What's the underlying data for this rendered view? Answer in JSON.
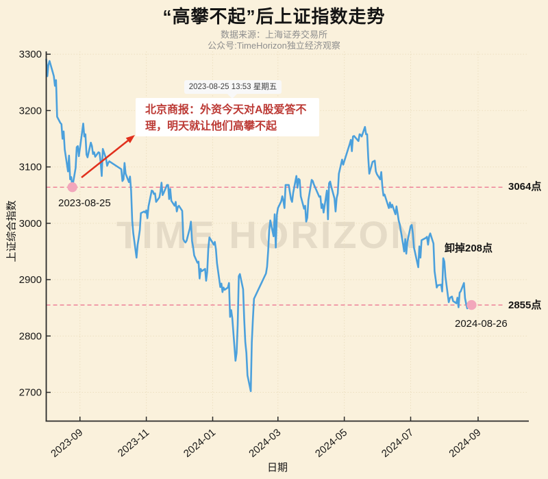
{
  "header": {
    "title": "“高攀不起”后上证指数走势",
    "source_line": "数据来源：上海证券交易所",
    "account_line": "公众号:TimeHorizon独立经济观察"
  },
  "watermark": "TIME HORIZON",
  "news_card": {
    "timestamp": "2023-08-25 13:53 星期五",
    "text": "北京商报：外资今天对A股爱答不理，明天就让他们高攀不起"
  },
  "colors": {
    "background": "#faf1dc",
    "line": "#4ba0dc",
    "ref_dashed": "#ee8197",
    "marker_dot": "#f2a6bb",
    "arrow": "#e1301d",
    "news_text": "#bc3a35"
  },
  "chart_data": {
    "type": "line",
    "title": "“高攀不起”后上证指数走势",
    "xlabel": "日期",
    "ylabel": "上证综合指数",
    "grid": true,
    "xlim": [
      "2023-08-01",
      "2024-10-17"
    ],
    "ylim": [
      2649,
      3305
    ],
    "y_ticks": [
      2700,
      2800,
      2900,
      3000,
      3100,
      3200,
      3300
    ],
    "x_ticks": [
      {
        "date": "2023-09-01",
        "label": "2023-09"
      },
      {
        "date": "2023-11-01",
        "label": "2023-11"
      },
      {
        "date": "2024-01-01",
        "label": "2024-01"
      },
      {
        "date": "2024-03-01",
        "label": "2024-03"
      },
      {
        "date": "2024-05-01",
        "label": "2024-05"
      },
      {
        "date": "2024-07-01",
        "label": "2024-07"
      },
      {
        "date": "2024-09-01",
        "label": "2024-09"
      }
    ],
    "ref_lines": [
      {
        "value": 3064,
        "label": "3064点"
      },
      {
        "value": 2855,
        "label": "2855点"
      }
    ],
    "marked_points": [
      {
        "date": "2023-08-25",
        "value": 3064,
        "label": "2023-08-25"
      },
      {
        "date": "2024-08-26",
        "value": 2855,
        "label": "2024-08-26"
      }
    ],
    "drop_label": "卸掉208点",
    "series": [
      {
        "name": "上证综合指数",
        "color": "#4ba0dc",
        "points": [
          [
            "2023-08-01",
            3291
          ],
          [
            "2023-08-02",
            3261
          ],
          [
            "2023-08-03",
            3281
          ],
          [
            "2023-08-04",
            3288
          ],
          [
            "2023-08-07",
            3268
          ],
          [
            "2023-08-08",
            3261
          ],
          [
            "2023-08-09",
            3244
          ],
          [
            "2023-08-10",
            3254
          ],
          [
            "2023-08-11",
            3189
          ],
          [
            "2023-08-14",
            3178
          ],
          [
            "2023-08-15",
            3176
          ],
          [
            "2023-08-16",
            3150
          ],
          [
            "2023-08-17",
            3163
          ],
          [
            "2023-08-18",
            3131
          ],
          [
            "2023-08-21",
            3092
          ],
          [
            "2023-08-22",
            3120
          ],
          [
            "2023-08-23",
            3078
          ],
          [
            "2023-08-24",
            3082
          ],
          [
            "2023-08-25",
            3064
          ],
          [
            "2023-08-28",
            3098
          ],
          [
            "2023-08-29",
            3135
          ],
          [
            "2023-08-30",
            3137
          ],
          [
            "2023-08-31",
            3119
          ],
          [
            "2023-09-01",
            3133
          ],
          [
            "2023-09-04",
            3177
          ],
          [
            "2023-09-05",
            3154
          ],
          [
            "2023-09-06",
            3158
          ],
          [
            "2023-09-07",
            3122
          ],
          [
            "2023-09-08",
            3117
          ],
          [
            "2023-09-11",
            3143
          ],
          [
            "2023-09-12",
            3137
          ],
          [
            "2023-09-13",
            3123
          ],
          [
            "2023-09-14",
            3126
          ],
          [
            "2023-09-15",
            3118
          ],
          [
            "2023-09-18",
            3126
          ],
          [
            "2023-09-19",
            3125
          ],
          [
            "2023-09-20",
            3109
          ],
          [
            "2023-09-21",
            3084
          ],
          [
            "2023-09-22",
            3132
          ],
          [
            "2023-09-25",
            3115
          ],
          [
            "2023-09-26",
            3102
          ],
          [
            "2023-09-27",
            3107
          ],
          [
            "2023-09-28",
            3110
          ],
          [
            "2023-10-09",
            3096
          ],
          [
            "2023-10-10",
            3075
          ],
          [
            "2023-10-11",
            3078
          ],
          [
            "2023-10-12",
            3107
          ],
          [
            "2023-10-13",
            3088
          ],
          [
            "2023-10-16",
            3073
          ],
          [
            "2023-10-17",
            3083
          ],
          [
            "2023-10-18",
            3058
          ],
          [
            "2023-10-19",
            3005
          ],
          [
            "2023-10-20",
            2983
          ],
          [
            "2023-10-23",
            2939
          ],
          [
            "2023-10-24",
            2962
          ],
          [
            "2023-10-25",
            2974
          ],
          [
            "2023-10-26",
            2988
          ],
          [
            "2023-10-27",
            3018
          ],
          [
            "2023-10-30",
            3021
          ],
          [
            "2023-10-31",
            3019
          ],
          [
            "2023-11-01",
            3023
          ],
          [
            "2023-11-02",
            3009
          ],
          [
            "2023-11-03",
            3030
          ],
          [
            "2023-11-06",
            3058
          ],
          [
            "2023-11-07",
            3057
          ],
          [
            "2023-11-08",
            3052
          ],
          [
            "2023-11-09",
            3053
          ],
          [
            "2023-11-10",
            3038
          ],
          [
            "2023-11-13",
            3046
          ],
          [
            "2023-11-14",
            3056
          ],
          [
            "2023-11-15",
            3072
          ],
          [
            "2023-11-16",
            3050
          ],
          [
            "2023-11-17",
            3054
          ],
          [
            "2023-11-20",
            3068
          ],
          [
            "2023-11-21",
            3068
          ],
          [
            "2023-11-22",
            3043
          ],
          [
            "2023-11-23",
            3061
          ],
          [
            "2023-11-24",
            3040
          ],
          [
            "2023-11-27",
            3031
          ],
          [
            "2023-11-28",
            3038
          ],
          [
            "2023-11-29",
            3021
          ],
          [
            "2023-11-30",
            3029
          ],
          [
            "2023-12-01",
            3031
          ],
          [
            "2023-12-04",
            3022
          ],
          [
            "2023-12-05",
            2972
          ],
          [
            "2023-12-06",
            2968
          ],
          [
            "2023-12-07",
            2966
          ],
          [
            "2023-12-08",
            2969
          ],
          [
            "2023-12-11",
            2991
          ],
          [
            "2023-12-12",
            3003
          ],
          [
            "2023-12-13",
            2969
          ],
          [
            "2023-12-14",
            2958
          ],
          [
            "2023-12-15",
            2943
          ],
          [
            "2023-12-18",
            2930
          ],
          [
            "2023-12-19",
            2932
          ],
          [
            "2023-12-20",
            2902
          ],
          [
            "2023-12-21",
            2919
          ],
          [
            "2023-12-22",
            2915
          ],
          [
            "2023-12-25",
            2919
          ],
          [
            "2023-12-26",
            2898
          ],
          [
            "2023-12-27",
            2914
          ],
          [
            "2023-12-28",
            2955
          ],
          [
            "2023-12-29",
            2975
          ],
          [
            "2024-01-02",
            2962
          ],
          [
            "2024-01-03",
            2967
          ],
          [
            "2024-01-04",
            2954
          ],
          [
            "2024-01-05",
            2929
          ],
          [
            "2024-01-08",
            2887
          ],
          [
            "2024-01-09",
            2893
          ],
          [
            "2024-01-10",
            2878
          ],
          [
            "2024-01-11",
            2886
          ],
          [
            "2024-01-12",
            2882
          ],
          [
            "2024-01-15",
            2886
          ],
          [
            "2024-01-16",
            2894
          ],
          [
            "2024-01-17",
            2834
          ],
          [
            "2024-01-18",
            2846
          ],
          [
            "2024-01-19",
            2832
          ],
          [
            "2024-01-22",
            2756
          ],
          [
            "2024-01-23",
            2770
          ],
          [
            "2024-01-24",
            2820
          ],
          [
            "2024-01-25",
            2906
          ],
          [
            "2024-01-26",
            2910
          ],
          [
            "2024-01-29",
            2883
          ],
          [
            "2024-01-30",
            2830
          ],
          [
            "2024-01-31",
            2789
          ],
          [
            "2024-02-01",
            2770
          ],
          [
            "2024-02-02",
            2730
          ],
          [
            "2024-02-05",
            2702
          ],
          [
            "2024-02-06",
            2789
          ],
          [
            "2024-02-07",
            2830
          ],
          [
            "2024-02-08",
            2866
          ],
          [
            "2024-02-19",
            2911
          ],
          [
            "2024-02-20",
            2923
          ],
          [
            "2024-02-21",
            2951
          ],
          [
            "2024-02-22",
            2988
          ],
          [
            "2024-02-23",
            3005
          ],
          [
            "2024-02-26",
            2977
          ],
          [
            "2024-02-27",
            3016
          ],
          [
            "2024-02-28",
            2957
          ],
          [
            "2024-02-29",
            3015
          ],
          [
            "2024-03-01",
            3027
          ],
          [
            "2024-03-04",
            3039
          ],
          [
            "2024-03-05",
            3048
          ],
          [
            "2024-03-06",
            3040
          ],
          [
            "2024-03-07",
            3027
          ],
          [
            "2024-03-08",
            3068
          ],
          [
            "2024-03-11",
            3068
          ],
          [
            "2024-03-12",
            3055
          ],
          [
            "2024-03-13",
            3043
          ],
          [
            "2024-03-14",
            3038
          ],
          [
            "2024-03-15",
            3054
          ],
          [
            "2024-03-18",
            3084
          ],
          [
            "2024-03-19",
            3063
          ],
          [
            "2024-03-20",
            3079
          ],
          [
            "2024-03-21",
            3077
          ],
          [
            "2024-03-22",
            3048
          ],
          [
            "2024-03-25",
            3026
          ],
          [
            "2024-03-26",
            3031
          ],
          [
            "2024-03-27",
            3003
          ],
          [
            "2024-03-28",
            3010
          ],
          [
            "2024-03-29",
            3041
          ],
          [
            "2024-04-01",
            3077
          ],
          [
            "2024-04-02",
            3075
          ],
          [
            "2024-04-03",
            3069
          ],
          [
            "2024-04-08",
            3047
          ],
          [
            "2024-04-09",
            3048
          ],
          [
            "2024-04-10",
            3027
          ],
          [
            "2024-04-11",
            3034
          ],
          [
            "2024-04-12",
            3019
          ],
          [
            "2024-04-15",
            3058
          ],
          [
            "2024-04-16",
            3007
          ],
          [
            "2024-04-17",
            3071
          ],
          [
            "2024-04-18",
            3074
          ],
          [
            "2024-04-19",
            3065
          ],
          [
            "2024-04-22",
            3044
          ],
          [
            "2024-04-23",
            3021
          ],
          [
            "2024-04-24",
            3045
          ],
          [
            "2024-04-25",
            3053
          ],
          [
            "2024-04-26",
            3088
          ],
          [
            "2024-04-29",
            3113
          ],
          [
            "2024-04-30",
            3104
          ],
          [
            "2024-05-06",
            3141
          ],
          [
            "2024-05-07",
            3148
          ],
          [
            "2024-05-08",
            3128
          ],
          [
            "2024-05-09",
            3154
          ],
          [
            "2024-05-10",
            3155
          ],
          [
            "2024-05-13",
            3148
          ],
          [
            "2024-05-14",
            3146
          ],
          [
            "2024-05-15",
            3158
          ],
          [
            "2024-05-16",
            3157
          ],
          [
            "2024-05-17",
            3154
          ],
          [
            "2024-05-20",
            3171
          ],
          [
            "2024-05-21",
            3158
          ],
          [
            "2024-05-22",
            3158
          ],
          [
            "2024-05-23",
            3116
          ],
          [
            "2024-05-24",
            3088
          ],
          [
            "2024-05-27",
            3109
          ],
          [
            "2024-05-28",
            3110
          ],
          [
            "2024-05-29",
            3111
          ],
          [
            "2024-05-30",
            3092
          ],
          [
            "2024-05-31",
            3087
          ],
          [
            "2024-06-03",
            3078
          ],
          [
            "2024-06-04",
            3091
          ],
          [
            "2024-06-05",
            3065
          ],
          [
            "2024-06-06",
            3049
          ],
          [
            "2024-06-07",
            3051
          ],
          [
            "2024-06-11",
            3027
          ],
          [
            "2024-06-12",
            3037
          ],
          [
            "2024-06-13",
            3028
          ],
          [
            "2024-06-14",
            3033
          ],
          [
            "2024-06-17",
            3016
          ],
          [
            "2024-06-18",
            3030
          ],
          [
            "2024-06-19",
            3018
          ],
          [
            "2024-06-20",
            3005
          ],
          [
            "2024-06-21",
            2998
          ],
          [
            "2024-06-24",
            2963
          ],
          [
            "2024-06-25",
            2950
          ],
          [
            "2024-06-26",
            2972
          ],
          [
            "2024-06-27",
            2946
          ],
          [
            "2024-06-28",
            2967
          ],
          [
            "2024-07-01",
            2995
          ],
          [
            "2024-07-02",
            2997
          ],
          [
            "2024-07-03",
            2982
          ],
          [
            "2024-07-04",
            2957
          ],
          [
            "2024-07-05",
            2949
          ],
          [
            "2024-07-08",
            2922
          ],
          [
            "2024-07-09",
            2959
          ],
          [
            "2024-07-10",
            2939
          ],
          [
            "2024-07-11",
            2970
          ],
          [
            "2024-07-12",
            2971
          ],
          [
            "2024-07-15",
            2974
          ],
          [
            "2024-07-16",
            2976
          ],
          [
            "2024-07-17",
            2962
          ],
          [
            "2024-07-18",
            2977
          ],
          [
            "2024-07-19",
            2982
          ],
          [
            "2024-07-22",
            2964
          ],
          [
            "2024-07-23",
            2915
          ],
          [
            "2024-07-24",
            2901
          ],
          [
            "2024-07-25",
            2886
          ],
          [
            "2024-07-26",
            2890
          ],
          [
            "2024-07-29",
            2891
          ],
          [
            "2024-07-30",
            2879
          ],
          [
            "2024-07-31",
            2938
          ],
          [
            "2024-08-01",
            2932
          ],
          [
            "2024-08-02",
            2905
          ],
          [
            "2024-08-05",
            2860
          ],
          [
            "2024-08-06",
            2867
          ],
          [
            "2024-08-07",
            2869
          ],
          [
            "2024-08-08",
            2870
          ],
          [
            "2024-08-09",
            2862
          ],
          [
            "2024-08-12",
            2858
          ],
          [
            "2024-08-13",
            2868
          ],
          [
            "2024-08-14",
            2851
          ],
          [
            "2024-08-15",
            2877
          ],
          [
            "2024-08-16",
            2879
          ],
          [
            "2024-08-19",
            2894
          ],
          [
            "2024-08-20",
            2867
          ],
          [
            "2024-08-21",
            2857
          ],
          [
            "2024-08-22",
            2849
          ],
          [
            "2024-08-23",
            2854
          ],
          [
            "2024-08-26",
            2855
          ]
        ]
      }
    ]
  }
}
